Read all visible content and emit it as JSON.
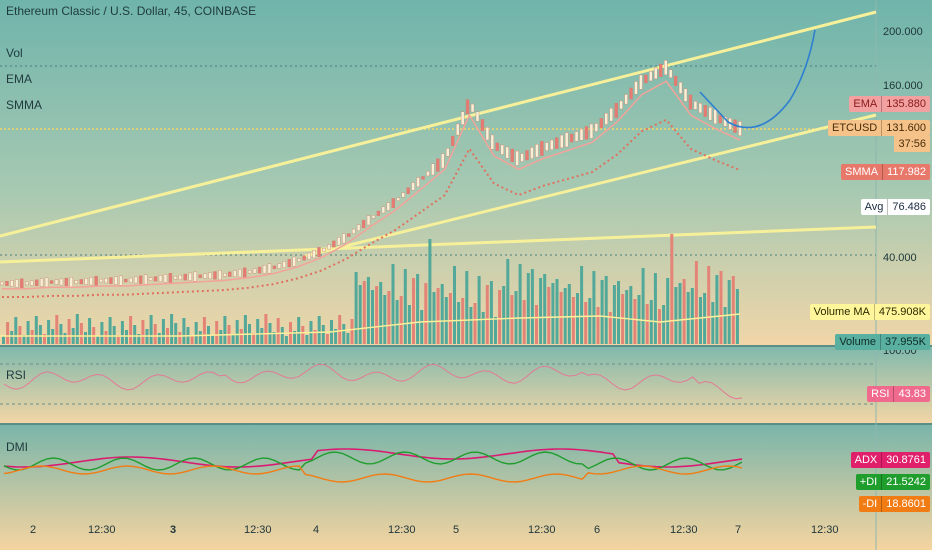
{
  "header": {
    "title": "Ethereum Classic / U.S. Dollar, 45, COINBASE"
  },
  "indicators": {
    "vol": "Vol",
    "ema": "EMA",
    "smma": "SMMA",
    "rsi": "RSI",
    "dmi": "DMI"
  },
  "price_axis": {
    "ticks": [
      "200.000",
      "160.000",
      "40.000"
    ]
  },
  "rsi_axis": {
    "tick": "100.00"
  },
  "tags": {
    "ema": {
      "name": "EMA",
      "value": "135.880",
      "color": "#f2a0a0",
      "text": "#8a1b1b"
    },
    "etcusd": {
      "name": "ETCUSD",
      "value": "131.600",
      "countdown": "37:56",
      "color": "#f5c38a",
      "text": "#4a2c08"
    },
    "smma": {
      "name": "SMMA",
      "value": "117.982",
      "color": "#e8786a",
      "text": "#ffffff"
    },
    "avg": {
      "name": "Avg",
      "value": "76.486",
      "color": "#ffffff",
      "text": "#1b2b40"
    },
    "volma": {
      "name": "Volume MA",
      "value": "475.908K",
      "color": "#fff59a",
      "text": "#2b2b00"
    },
    "volume": {
      "name": "Volume",
      "value": "37.955K",
      "color": "#5ab0a0",
      "text": "#0b2b25"
    },
    "rsi": {
      "name": "RSI",
      "value": "43.83",
      "color": "#f06a8e",
      "text": "#ffffff"
    },
    "adx": {
      "name": "ADX",
      "value": "30.8761",
      "color": "#e0206b",
      "text": "#ffffff"
    },
    "pdi": {
      "name": "+DI",
      "value": "21.5242",
      "color": "#1f9e2e",
      "text": "#ffffff"
    },
    "mdi": {
      "name": "-DI",
      "value": "18.8601",
      "color": "#f27c14",
      "text": "#ffffff"
    }
  },
  "time_axis": {
    "labels": [
      {
        "text": "2",
        "bold": false
      },
      {
        "text": "12:30",
        "bold": false
      },
      {
        "text": "3",
        "bold": true
      },
      {
        "text": "12:30",
        "bold": false
      },
      {
        "text": "4",
        "bold": false
      },
      {
        "text": "12:30",
        "bold": false
      },
      {
        "text": "5",
        "bold": false
      },
      {
        "text": "12:30",
        "bold": false
      },
      {
        "text": "6",
        "bold": false
      },
      {
        "text": "12:30",
        "bold": false
      },
      {
        "text": "7",
        "bold": false
      },
      {
        "text": "12:30",
        "bold": false
      }
    ]
  },
  "chart_data": {
    "type": "line",
    "price_ticks": [
      40,
      160,
      200
    ],
    "series": [
      {
        "name": "ETCUSD",
        "values": [
          22,
          22,
          23,
          23,
          24,
          24,
          25,
          26,
          27,
          28,
          30,
          33,
          38,
          45,
          55,
          68,
          80,
          95,
          110,
          150,
          120,
          110,
          118,
          124,
          130,
          145,
          165,
          175,
          150,
          140,
          131.6
        ]
      }
    ],
    "last_values": {
      "EMA": 135.88,
      "ETCUSD": 131.6,
      "SMMA": 117.982,
      "Avg": 76.486,
      "Volume MA": "475.908K",
      "Volume": "37.955K",
      "RSI": 43.83,
      "ADX": 30.8761,
      "+DI": 21.5242,
      "-DI": 18.8601
    }
  }
}
